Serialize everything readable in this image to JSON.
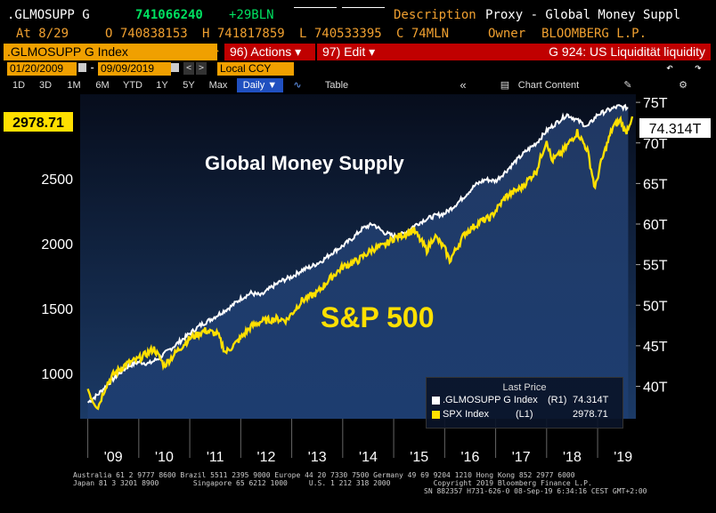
{
  "header": {
    "ticker": ".GLMOSUPP G",
    "price": "741066240",
    "change": "+29BLN",
    "description_label": "Description",
    "description_value": "Proxy - Global Money Suppl",
    "at_label": "At 8/29",
    "open": "O 740838153",
    "high": "H 741817859",
    "low": "L 740533395",
    "close": "C 74MLN",
    "owner_label": "Owner",
    "owner_value": "BLOOMBERG L.P."
  },
  "toolbar": {
    "security": ".GLMOSUPP G Index",
    "actions": "96) Actions ▾",
    "edit": "97) Edit ▾",
    "chart_id": "G 924: US Liquidität liquidity"
  },
  "dates": {
    "start": "01/20/2009",
    "end": "09/09/2019",
    "currency": "Local CCY"
  },
  "periods": [
    "1D",
    "3D",
    "1M",
    "6M",
    "YTD",
    "1Y",
    "5Y",
    "Max"
  ],
  "frequency": "Daily ▼",
  "table_label": "Table",
  "chart_content_label": "Chart Content",
  "colors": {
    "gms_line": "#ffffff",
    "spx_line": "#ffe000",
    "panel_bg_top": "#0d1a33",
    "panel_bg_bottom": "#1a3a6a",
    "amber": "#f0a000",
    "red": "#c00000"
  },
  "chart_data": {
    "type": "line",
    "annotations": [
      "Global Money Supply",
      "S&P 500"
    ],
    "x_ticks": [
      "'09",
      "'10",
      "'11",
      "'12",
      "'13",
      "'14",
      "'15",
      "'16",
      "'17",
      "'18",
      "'19"
    ],
    "left_axis": {
      "ticks": [
        "1000",
        "1500",
        "2000",
        "2500"
      ],
      "tick_values": [
        1000,
        1500,
        2000,
        2500
      ],
      "range": [
        650,
        3150
      ]
    },
    "right_axis": {
      "ticks": [
        "40T",
        "45T",
        "50T",
        "55T",
        "60T",
        "65T",
        "70T",
        "75T"
      ],
      "tick_values": [
        40,
        45,
        50,
        55,
        60,
        65,
        70,
        75
      ],
      "range": [
        36,
        76
      ]
    },
    "last_price_title": "Last Price",
    "series": [
      {
        "name": ".GLMOSUPP G Index",
        "axis_label": "(R1)",
        "last": "74.314T",
        "x": [
          2009.0,
          2009.2,
          2009.4,
          2009.6,
          2009.8,
          2010.0,
          2010.2,
          2010.4,
          2010.6,
          2010.8,
          2011.0,
          2011.2,
          2011.4,
          2011.6,
          2011.8,
          2012.0,
          2012.2,
          2012.4,
          2012.6,
          2012.8,
          2013.0,
          2013.2,
          2013.4,
          2013.6,
          2013.8,
          2014.0,
          2014.2,
          2014.4,
          2014.6,
          2014.8,
          2015.0,
          2015.2,
          2015.4,
          2015.6,
          2015.8,
          2016.0,
          2016.2,
          2016.4,
          2016.6,
          2016.8,
          2017.0,
          2017.2,
          2017.4,
          2017.6,
          2017.8,
          2018.0,
          2018.2,
          2018.4,
          2018.6,
          2018.8,
          2019.0,
          2019.2,
          2019.4,
          2019.6
        ],
        "values": [
          38.0,
          39.0,
          40.3,
          41.5,
          42.5,
          43.0,
          42.8,
          43.5,
          44.5,
          45.5,
          46.5,
          47.5,
          48.2,
          49.0,
          49.8,
          50.8,
          51.5,
          51.2,
          52.2,
          53.0,
          53.5,
          54.3,
          54.8,
          55.5,
          56.5,
          57.3,
          58.3,
          59.5,
          60.0,
          59.0,
          58.5,
          58.8,
          59.8,
          60.5,
          61.0,
          61.3,
          62.3,
          63.5,
          64.8,
          65.5,
          65.3,
          66.5,
          67.8,
          69.0,
          70.0,
          71.5,
          72.5,
          73.5,
          72.8,
          72.0,
          73.5,
          74.0,
          74.5,
          74.314
        ]
      },
      {
        "name": "SPX Index",
        "axis_label": "(L1)",
        "last": "2978.71",
        "x": [
          2009.0,
          2009.1,
          2009.2,
          2009.35,
          2009.5,
          2009.75,
          2010.0,
          2010.3,
          2010.5,
          2010.75,
          2011.0,
          2011.3,
          2011.55,
          2011.7,
          2011.9,
          2012.2,
          2012.4,
          2012.7,
          2012.9,
          2013.2,
          2013.5,
          2013.75,
          2014.0,
          2014.3,
          2014.6,
          2014.8,
          2015.0,
          2015.4,
          2015.65,
          2015.8,
          2016.0,
          2016.1,
          2016.4,
          2016.7,
          2016.9,
          2017.2,
          2017.5,
          2017.8,
          2018.0,
          2018.1,
          2018.3,
          2018.6,
          2018.8,
          2018.95,
          2019.05,
          2019.3,
          2019.45,
          2019.55,
          2019.68
        ],
        "values": [
          880,
          790,
          740,
          900,
          990,
          1070,
          1110,
          1190,
          1060,
          1170,
          1270,
          1330,
          1300,
          1160,
          1230,
          1360,
          1400,
          1420,
          1410,
          1560,
          1620,
          1730,
          1820,
          1870,
          1960,
          1980,
          2040,
          2100,
          1950,
          2060,
          1960,
          1870,
          2080,
          2170,
          2200,
          2360,
          2430,
          2560,
          2800,
          2640,
          2700,
          2860,
          2720,
          2420,
          2600,
          2900,
          2950,
          2850,
          2978.71
        ]
      }
    ]
  },
  "footer": {
    "line1": "Australia 61 2 9777 8600 Brazil 5511 2395 9000 Europe 44 20 7330 7500 Germany 49 69 9204 1210 Hong Kong 852 2977 6000",
    "line2": "Japan 81 3 3201 8900        Singapore 65 6212 1000     U.S. 1 212 318 2000          Copyright 2019 Bloomberg Finance L.P.",
    "line3": "SN 882357 H731-626-0 08-Sep-19  6:34:16 CEST GMT+2:00"
  }
}
